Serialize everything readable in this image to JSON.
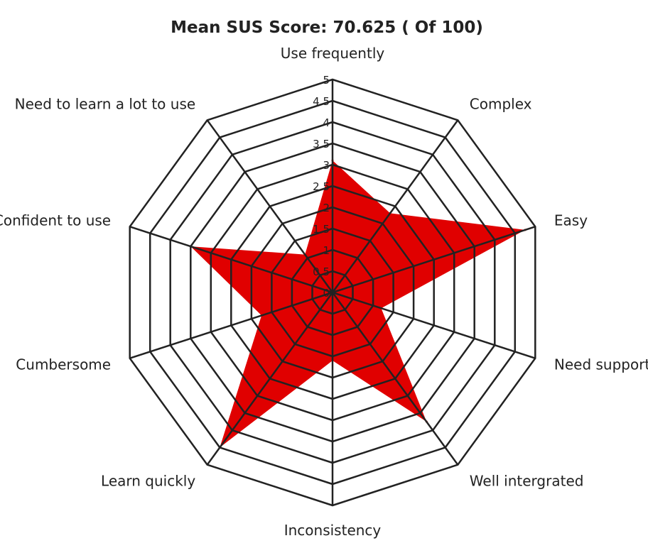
{
  "chart_data": {
    "type": "radar",
    "title": "Mean SUS Score: 70.625 ( Of 100)",
    "categories": [
      "Use frequently",
      "Complex",
      "Easy",
      "Need support",
      "Well intergrated",
      "Inconsistency",
      "Learn quickly",
      "Cumbersome",
      "Confident to use",
      "Need to learn a lot to use"
    ],
    "series": [
      {
        "values": [
          3.1,
          2.3,
          4.75,
          1.2,
          3.75,
          1.6,
          4.5,
          1.75,
          3.5,
          1.1
        ]
      }
    ],
    "rlim": [
      0,
      5
    ],
    "ticks": [
      "0",
      "0.5",
      "1",
      "1.5",
      "2",
      "2.5",
      "3",
      "3.5",
      "4",
      "4.5",
      "5"
    ],
    "grid": true,
    "legend": "none",
    "series_color": "#e00000",
    "grid_color": "#222222"
  }
}
